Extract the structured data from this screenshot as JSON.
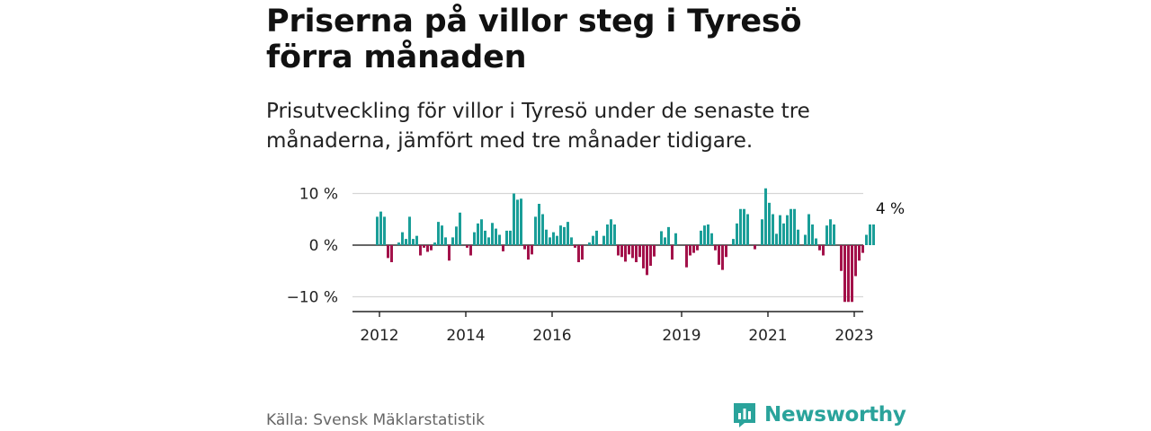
{
  "title": "Priserna på villor steg i Tyresö förra månaden",
  "subtitle": "Prisutveckling för villor i Tyresö under de senaste tre månaderna, jämfört med tre månader tidigare.",
  "source": "Källa: Svensk Mäklarstatistik",
  "brand": "Newsworthy",
  "colors": {
    "positive": "#1a9e98",
    "negative": "#a3124a",
    "grid": "#d6d6d6",
    "logo": "#2aa39b"
  },
  "chart_data": {
    "type": "bar",
    "title": "",
    "xlabel": "",
    "ylabel": "",
    "ylim": [
      -13,
      12
    ],
    "yticks": [
      10,
      0,
      -10
    ],
    "ytick_labels": [
      "10 %",
      "0 %",
      "−10 %"
    ],
    "xticks": [
      {
        "index": 1,
        "label": "2012"
      },
      {
        "index": 25,
        "label": "2014"
      },
      {
        "index": 49,
        "label": "2016"
      },
      {
        "index": 85,
        "label": "2019"
      },
      {
        "index": 109,
        "label": "2021"
      },
      {
        "index": 133,
        "label": "2023"
      }
    ],
    "last_value_label": "4 %",
    "values": [
      5.5,
      6.5,
      5.5,
      -2.5,
      -3.3,
      0,
      0.5,
      2.5,
      1.2,
      5.5,
      1.2,
      1.8,
      -2,
      -0.5,
      -1.3,
      -1,
      0.5,
      4.5,
      3.8,
      1.5,
      -3,
      1.5,
      3.6,
      6.3,
      0,
      -0.5,
      -2,
      2.5,
      4.2,
      5,
      2.8,
      1.5,
      4.3,
      3.2,
      2,
      -1.2,
      2.8,
      2.8,
      10,
      8.8,
      9,
      -0.8,
      -2.8,
      -1.8,
      5.5,
      8,
      6,
      3,
      1.5,
      2.5,
      1.8,
      3.8,
      3.5,
      4.5,
      1.5,
      -0.5,
      -3.3,
      -2.8,
      0,
      0.5,
      1.8,
      2.8,
      0,
      1.8,
      4,
      5,
      4,
      -2,
      -2.3,
      -3.2,
      -1.8,
      -2.5,
      -3.3,
      -2.3,
      -4.5,
      -5.8,
      -4,
      -2.2,
      0,
      2.7,
      1.5,
      3.5,
      -2.8,
      2.3,
      0,
      0,
      -4.3,
      -2,
      -1.5,
      -1,
      2.8,
      3.8,
      4,
      2.3,
      -1,
      -3.8,
      -4.8,
      -2.3,
      0,
      1.2,
      4.2,
      7,
      7,
      6,
      0,
      -0.8,
      0,
      5,
      11,
      8.2,
      6,
      2.2,
      5.8,
      4.2,
      5.8,
      7,
      7,
      3,
      0,
      2,
      6,
      4,
      1.3,
      -1,
      -2,
      3.8,
      5,
      4,
      0,
      -5,
      -11,
      -11,
      -11,
      -6,
      -3,
      -1.5,
      2,
      4,
      4
    ]
  }
}
